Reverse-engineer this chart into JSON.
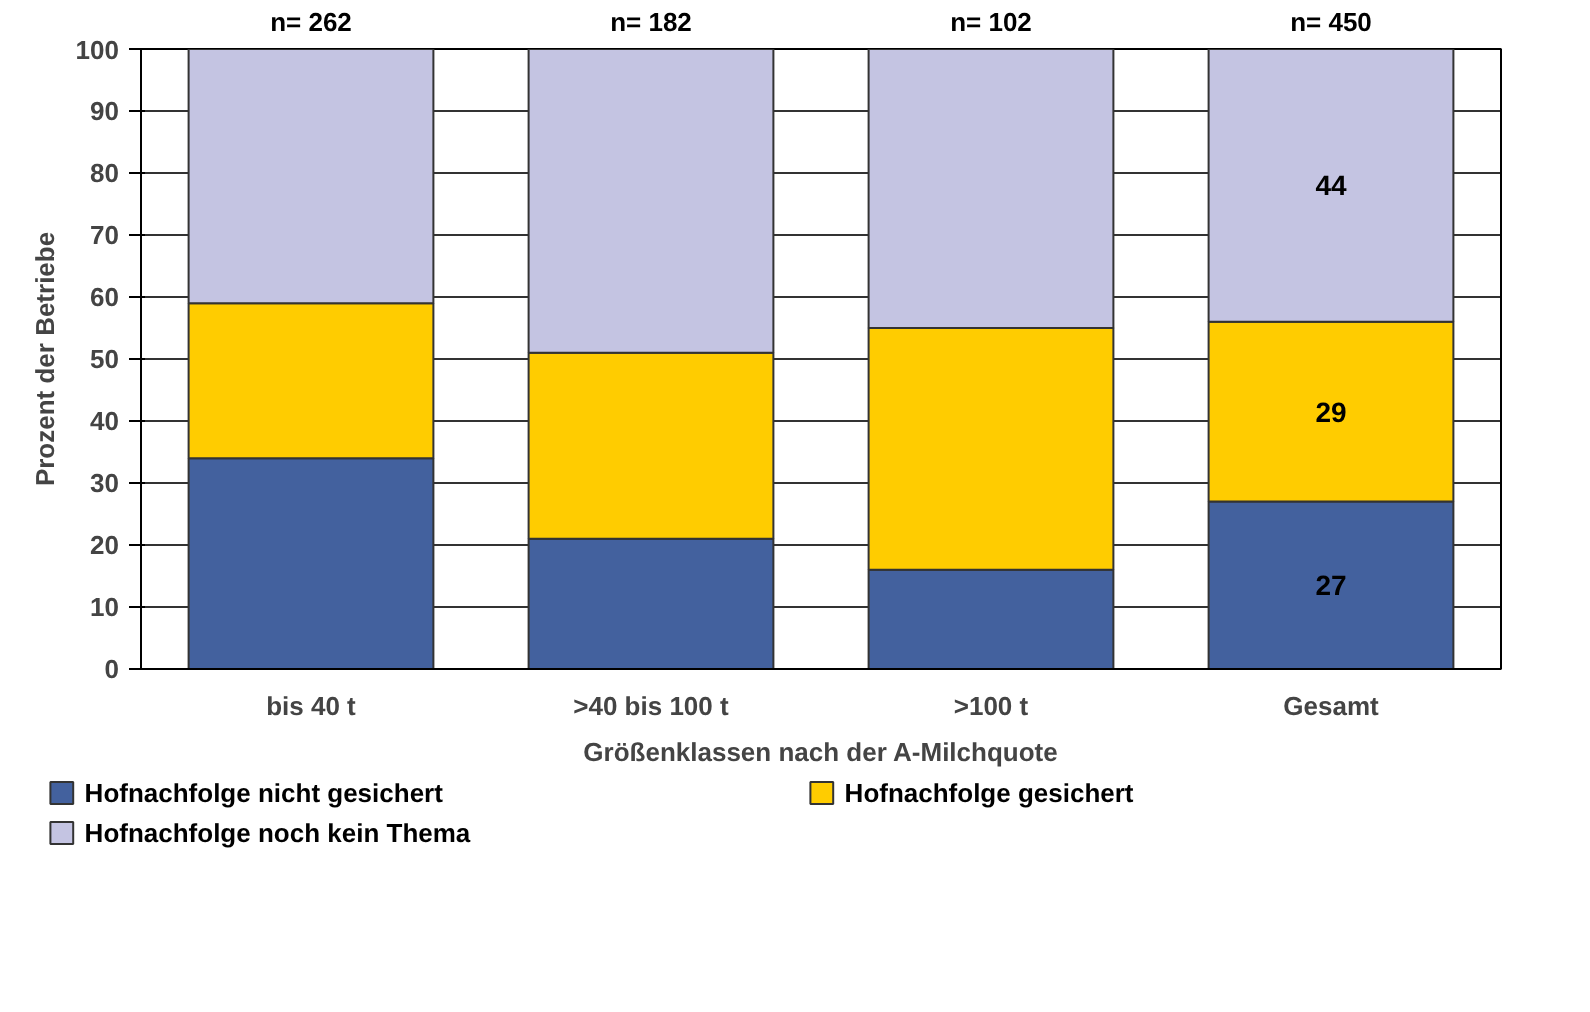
{
  "chart_data": {
    "type": "bar",
    "stacked": true,
    "xlabel": "Größenklassen nach der A-Milchquote",
    "ylabel": "Prozent der Betriebe",
    "categories": [
      "bis 40 t",
      ">40 bis 100 t",
      ">100 t",
      "Gesamt"
    ],
    "series": [
      {
        "name": "Hofnachfolge nicht gesichert",
        "color": "#43619e",
        "values": [
          34,
          21,
          16,
          27
        ],
        "value_labels": [
          null,
          null,
          null,
          "27"
        ]
      },
      {
        "name": "Hofnachfolge gesichert",
        "color": "#ffcc00",
        "values": [
          25,
          30,
          39,
          29
        ],
        "value_labels": [
          null,
          null,
          null,
          "29"
        ]
      },
      {
        "name": "Hofnachfolge noch kein Thema",
        "color": "#c4c4e2",
        "values": [
          41,
          49,
          45,
          44
        ],
        "value_labels": [
          null,
          null,
          null,
          "44"
        ]
      }
    ],
    "ylim": [
      0,
      100
    ],
    "yticks": [
      0,
      10,
      20,
      30,
      40,
      50,
      60,
      70,
      80,
      90,
      100
    ],
    "grid": "y",
    "legend": "bottom",
    "annotations": [
      {
        "text": "n= 262",
        "x": "bis 40 t",
        "y": 100
      },
      {
        "text": "n= 182",
        "x": ">40 bis 100 t",
        "y": 100
      },
      {
        "text": "n= 102",
        "x": ">100 t",
        "y": 100
      },
      {
        "text": "n= 450",
        "x": "Gesamt",
        "y": 100
      }
    ]
  }
}
